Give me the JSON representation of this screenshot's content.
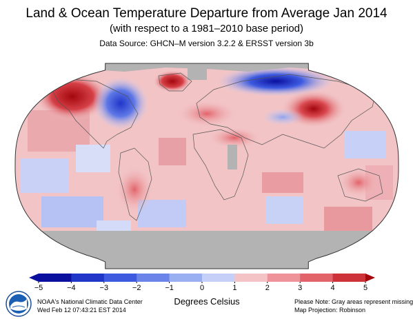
{
  "header": {
    "title": "Land & Ocean Temperature Departure from Average Jan 2014",
    "subtitle": "(with respect to a 1981–2010 base period)",
    "source": "Data Source: GHCN–M version 3.2.2 & ERSST version 3b"
  },
  "colorbar": {
    "title": "Degrees Celsius",
    "ticks": [
      "−5",
      "−4",
      "−3",
      "−2",
      "−1",
      "0",
      "1",
      "2",
      "3",
      "4",
      "5"
    ],
    "tick_values": [
      -5,
      -4,
      -3,
      -2,
      -1,
      0,
      1,
      2,
      3,
      4,
      5
    ],
    "colors": [
      "#0a0f9e",
      "#1f36c9",
      "#3e5be0",
      "#6a84ea",
      "#9aaef2",
      "#c5cff7",
      "#f4c3c6",
      "#ee9399",
      "#e2636a",
      "#cc3238",
      "#a3070c"
    ]
  },
  "footer": {
    "org": "NOAA's National Climatic Data Center",
    "timestamp": "Wed Feb 12 07:43:21 EST 2014",
    "note": "Please Note: Gray areas represent missing data",
    "projection": "Map Projection: Robinson"
  },
  "map": {
    "projection": "Robinson",
    "missing_color": "#b3b3b3",
    "ocean_base_color": "#f2c4c6",
    "land_outline_color": "#555555",
    "anomalies": {
      "eastern_north_america": "cold",
      "alaska": "warm",
      "greenland": "warm",
      "northern_eurasia_arctic": "cold",
      "siberia": "warm",
      "europe": "warm",
      "southern_ocean": "missing"
    }
  },
  "logo": {
    "icon": "noaa-logo-icon"
  }
}
